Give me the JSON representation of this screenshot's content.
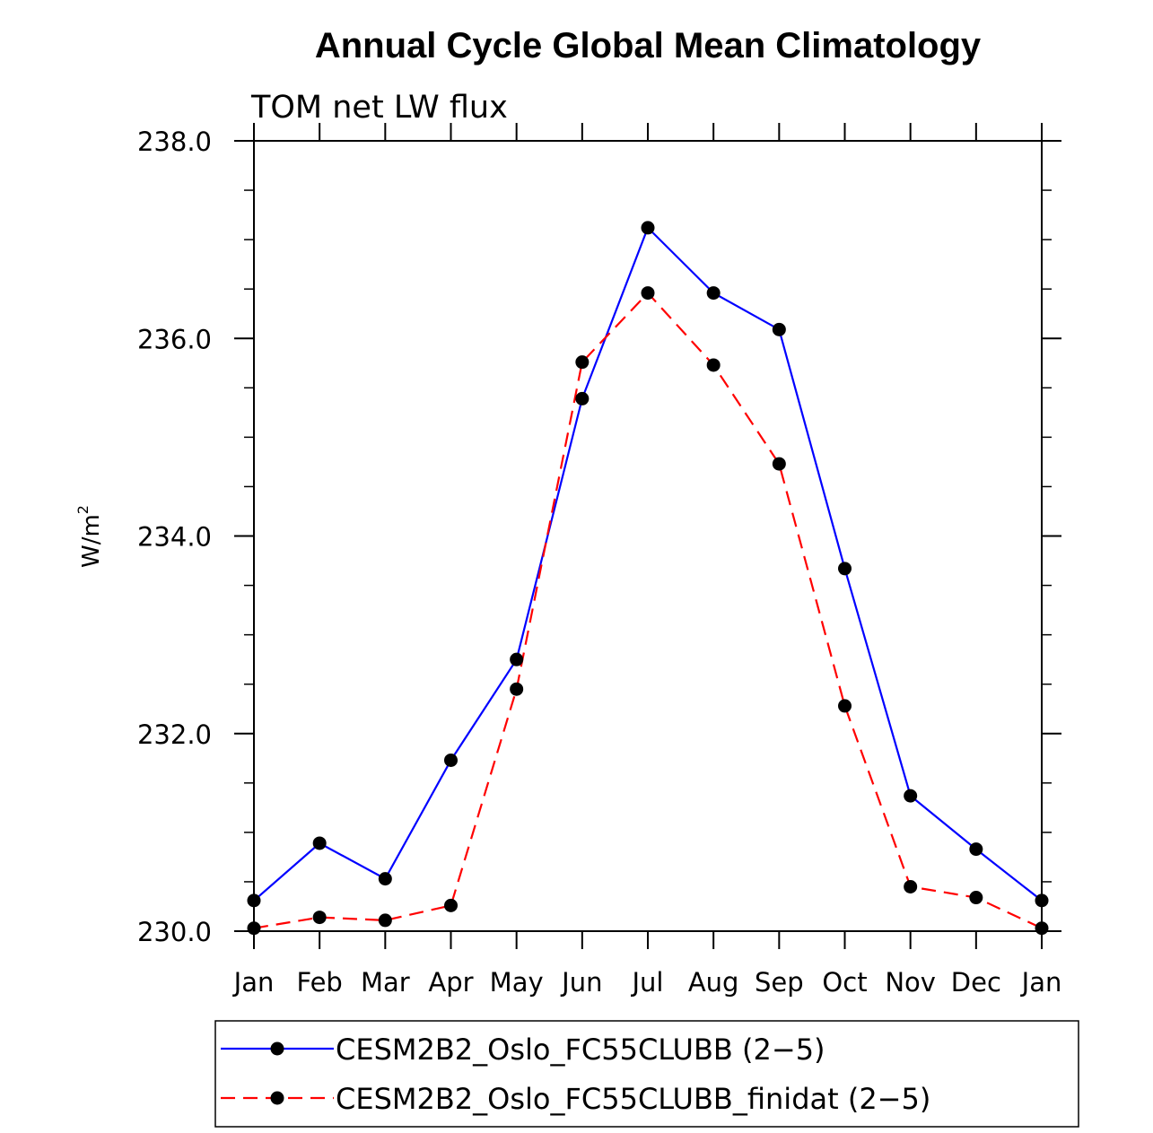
{
  "chart_data": {
    "type": "line",
    "title": "Annual Cycle Global Mean Climatology",
    "subtitle": "TOM net LW flux",
    "ylabel": "W/m",
    "ylabel_superscript": "2",
    "xlabel": "",
    "categories": [
      "Jan",
      "Feb",
      "Mar",
      "Apr",
      "May",
      "Jun",
      "Jul",
      "Aug",
      "Sep",
      "Oct",
      "Nov",
      "Dec",
      "Jan"
    ],
    "ylim": [
      230.0,
      238.0
    ],
    "yticks": [
      "230.0",
      "232.0",
      "234.0",
      "236.0",
      "238.0"
    ],
    "grid": false,
    "legend_position": "bottom",
    "series": [
      {
        "name": "CESM2B2_Oslo_FC55CLUBB (2−5)",
        "color": "#0000ff",
        "dash": "solid",
        "marker": "filled-circle",
        "values": [
          230.31,
          230.89,
          230.53,
          231.73,
          232.75,
          235.39,
          237.12,
          236.46,
          236.09,
          233.67,
          231.37,
          230.83,
          230.31
        ]
      },
      {
        "name": "CESM2B2_Oslo_FC55CLUBB_finidat (2−5)",
        "color": "#ff0000",
        "dash": "dashed",
        "marker": "filled-circle",
        "values": [
          230.03,
          230.14,
          230.11,
          230.26,
          232.45,
          235.76,
          236.46,
          235.73,
          234.73,
          232.28,
          230.45,
          230.34,
          230.03
        ]
      }
    ]
  }
}
